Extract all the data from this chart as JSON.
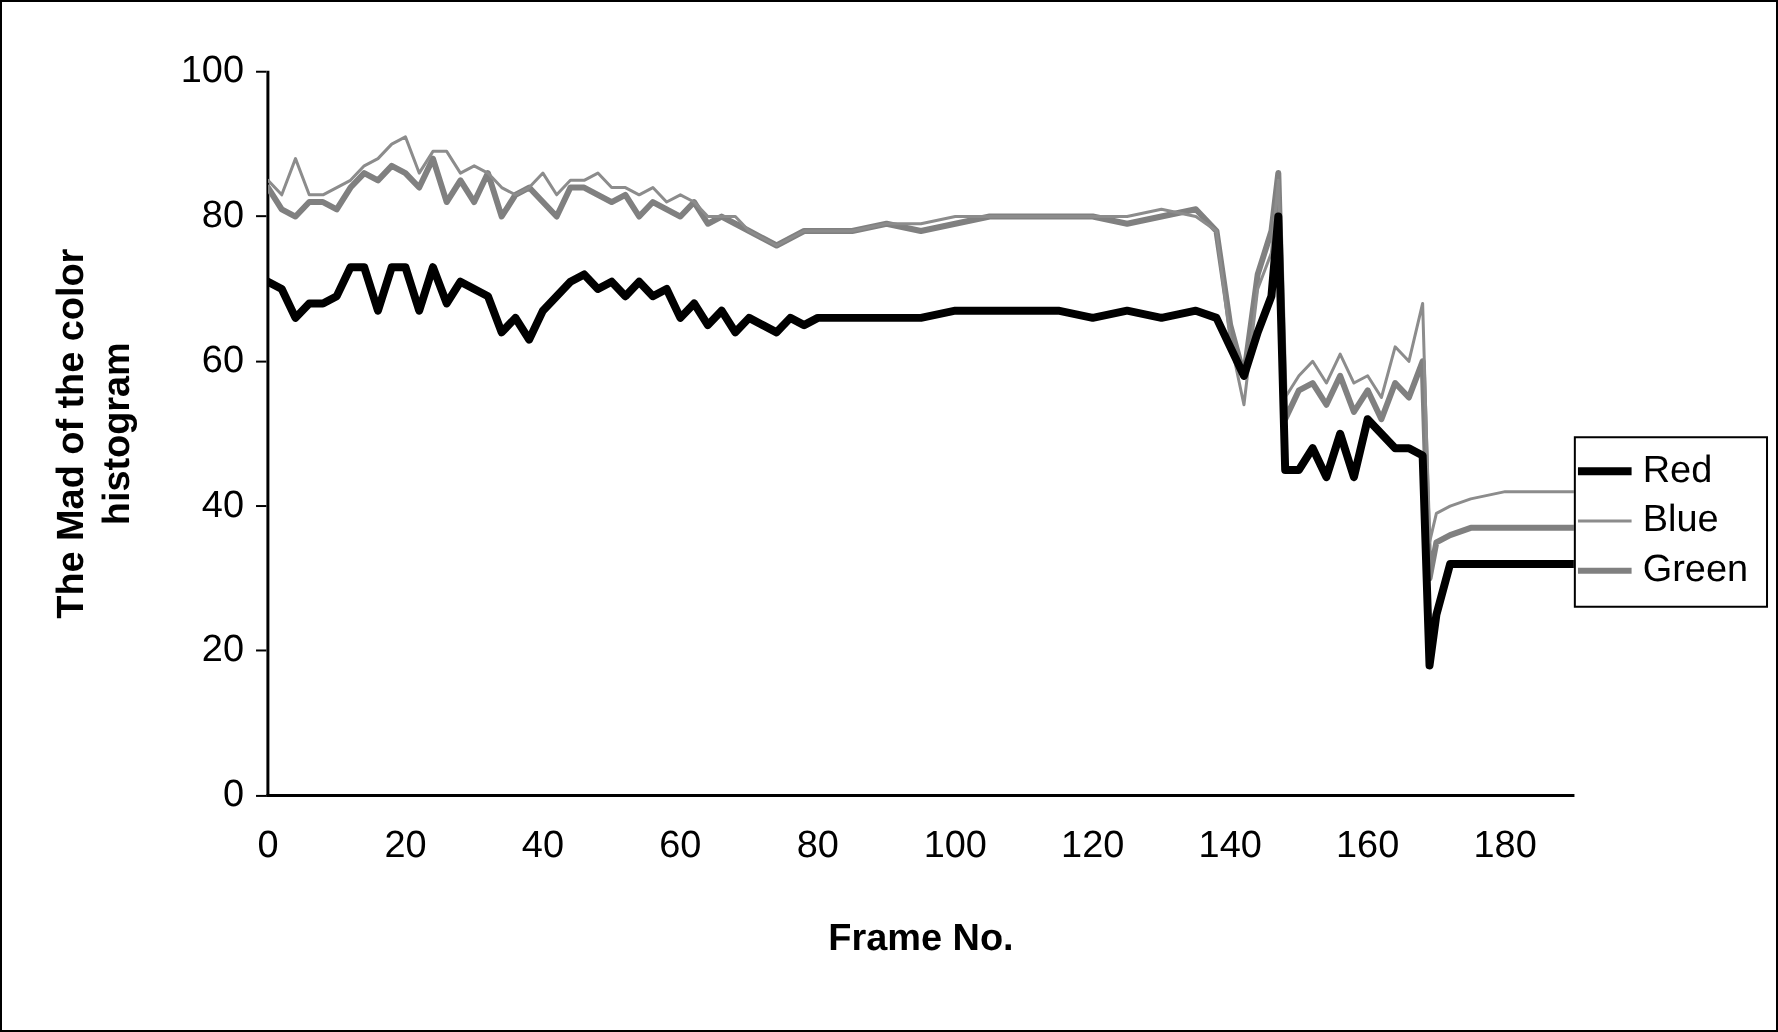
{
  "chart_data": {
    "type": "line",
    "xlabel": "Frame No.",
    "ylabel": "The Mad of the color histogram",
    "x": [
      0,
      2,
      4,
      6,
      8,
      10,
      12,
      14,
      16,
      18,
      20,
      22,
      24,
      26,
      28,
      30,
      32,
      34,
      36,
      38,
      40,
      42,
      44,
      46,
      48,
      50,
      52,
      54,
      56,
      58,
      60,
      62,
      64,
      66,
      68,
      70,
      72,
      74,
      76,
      78,
      80,
      85,
      90,
      95,
      100,
      105,
      110,
      115,
      120,
      125,
      130,
      135,
      138,
      140,
      142,
      144,
      146,
      147,
      148,
      150,
      152,
      154,
      156,
      158,
      160,
      162,
      164,
      166,
      168,
      169,
      170,
      172,
      175,
      180,
      185,
      190
    ],
    "series": [
      {
        "name": "Red",
        "color": "#000000",
        "values": [
          71,
          70,
          66,
          68,
          68,
          69,
          73,
          73,
          67,
          73,
          73,
          67,
          73,
          68,
          71,
          70,
          69,
          64,
          66,
          63,
          67,
          69,
          71,
          72,
          70,
          71,
          69,
          71,
          69,
          70,
          66,
          68,
          65,
          67,
          64,
          66,
          65,
          64,
          66,
          65,
          66,
          66,
          66,
          66,
          67,
          67,
          67,
          67,
          66,
          67,
          66,
          67,
          66,
          62,
          58,
          64,
          69,
          80,
          45,
          45,
          48,
          44,
          50,
          44,
          52,
          50,
          48,
          48,
          47,
          18,
          25,
          32,
          32,
          32,
          32,
          32
        ]
      },
      {
        "name": "Blue",
        "color": "#8c8c8c",
        "values": [
          85,
          83,
          88,
          83,
          83,
          84,
          85,
          87,
          88,
          90,
          91,
          86,
          89,
          89,
          86,
          87,
          86,
          84,
          83,
          84,
          86,
          83,
          85,
          85,
          86,
          84,
          84,
          83,
          84,
          82,
          83,
          82,
          80,
          80,
          80,
          78,
          77,
          76,
          77,
          78,
          78,
          78,
          79,
          79,
          80,
          80,
          80,
          80,
          80,
          80,
          81,
          80,
          78,
          63,
          54,
          70,
          75,
          85,
          55,
          58,
          60,
          57,
          61,
          57,
          58,
          55,
          62,
          60,
          68,
          35,
          39,
          40,
          41,
          42,
          42,
          42
        ]
      },
      {
        "name": "Green",
        "color": "#808080",
        "values": [
          84,
          81,
          80,
          82,
          82,
          81,
          84,
          86,
          85,
          87,
          86,
          84,
          88,
          82,
          85,
          82,
          86,
          80,
          83,
          84,
          82,
          80,
          84,
          84,
          83,
          82,
          83,
          80,
          82,
          81,
          80,
          82,
          79,
          80,
          79,
          78,
          77,
          76,
          77,
          78,
          78,
          78,
          79,
          78,
          79,
          80,
          80,
          80,
          80,
          79,
          80,
          81,
          78,
          65,
          58,
          72,
          78,
          86,
          52,
          56,
          57,
          54,
          58,
          53,
          56,
          52,
          57,
          55,
          60,
          30,
          35,
          36,
          37,
          37,
          37,
          37
        ]
      }
    ],
    "xlim": [
      0,
      190
    ],
    "xticks": [
      0,
      20,
      40,
      60,
      80,
      100,
      120,
      140,
      160,
      180
    ],
    "ylim": [
      0,
      100
    ],
    "yticks": [
      0,
      20,
      40,
      60,
      80,
      100
    ],
    "grid": false,
    "legend": "right",
    "marker": "none",
    "line_style": "solid"
  }
}
